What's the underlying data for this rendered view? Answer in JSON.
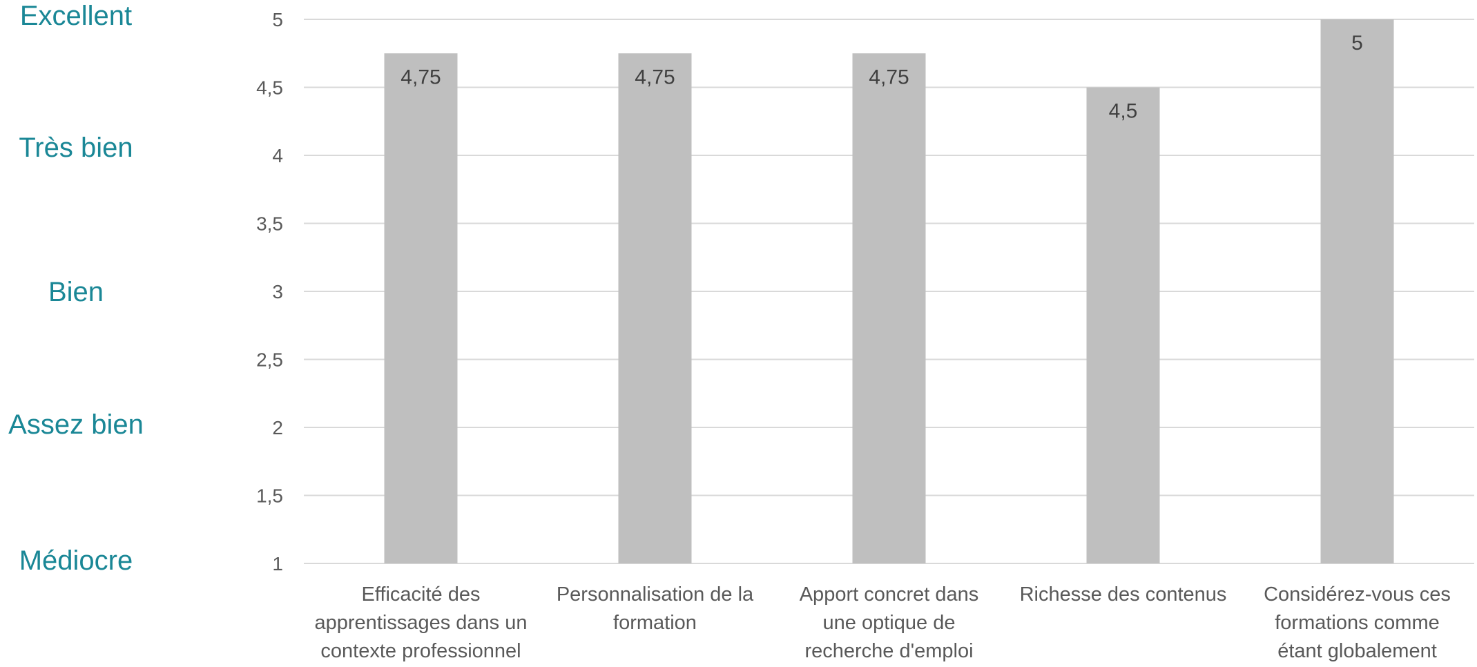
{
  "chart_data": {
    "type": "bar",
    "title": "",
    "xlabel": "",
    "ylabel": "",
    "ylim": [
      1,
      5
    ],
    "yticks": [
      "5",
      "4,5",
      "4",
      "3,5",
      "3",
      "2,5",
      "2",
      "1,5",
      "1"
    ],
    "ytick_values": [
      5,
      4.5,
      4,
      3.5,
      3,
      2.5,
      2,
      1.5,
      1
    ],
    "grid": true,
    "categories": [
      [
        "Efficacité des",
        "apprentissages dans un",
        "contexte professionnel"
      ],
      [
        "Personnalisation de la",
        "formation"
      ],
      [
        "Apport concret dans",
        "une optique de",
        "recherche d'emploi"
      ],
      [
        "Richesse des contenus"
      ],
      [
        "Considérez-vous ces",
        "formations comme",
        "étant globalement"
      ]
    ],
    "values": [
      4.75,
      4.75,
      4.75,
      4.5,
      5
    ],
    "data_labels": [
      "4,75",
      "4,75",
      "4,75",
      "4,5",
      "5"
    ],
    "rating_scale": [
      {
        "label": "Excellent",
        "value": 5
      },
      {
        "label": "Très bien",
        "value": 4
      },
      {
        "label": "Bien",
        "value": 3
      },
      {
        "label": "Assez bien",
        "value": 2
      },
      {
        "label": "Médiocre",
        "value": 1
      }
    ]
  },
  "colors": {
    "bar": "#bfbfbf",
    "grid": "#d9d9d9",
    "axis_text": "#595959",
    "rating_text": "#1a8796",
    "data_label_text": "#404040"
  }
}
